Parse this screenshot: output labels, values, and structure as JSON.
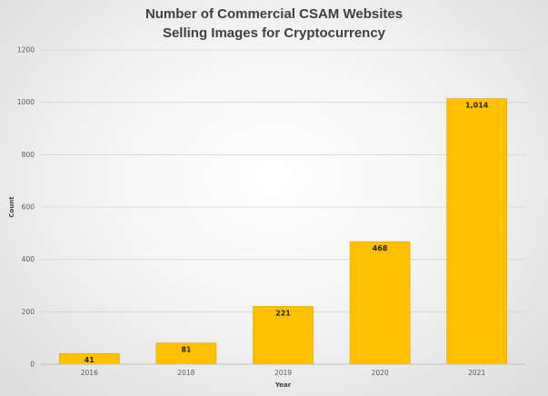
{
  "chart_data": {
    "type": "bar",
    "title_lines": [
      "Number of Commercial CSAM Websites",
      "Selling Images for Cryptocurrency"
    ],
    "xlabel": "Year",
    "ylabel": "Count",
    "categories": [
      "2016",
      "2018",
      "2019",
      "2020",
      "2021"
    ],
    "values": [
      41,
      81,
      221,
      468,
      1014
    ],
    "data_labels": [
      "41",
      "81",
      "221",
      "468",
      "1,014"
    ],
    "ylim": [
      0,
      1200
    ],
    "yticks": [
      0,
      200,
      400,
      600,
      800,
      1000,
      1200
    ],
    "grid": true,
    "legend": "none",
    "colors": {
      "bar": "#ffc000",
      "bar_edge": "#e0a800",
      "grid": "#d4d4d4",
      "axis": "#bfbfbf"
    }
  }
}
